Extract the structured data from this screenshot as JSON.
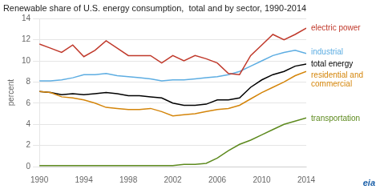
{
  "chart_data": {
    "type": "line",
    "title": "Renewable share of U.S. energy consumption,  total and by sector, 1990-2014",
    "ylabel": "percent",
    "x": [
      1990,
      1991,
      1992,
      1993,
      1994,
      1995,
      1996,
      1997,
      1998,
      1999,
      2000,
      2001,
      2002,
      2003,
      2004,
      2005,
      2006,
      2007,
      2008,
      2009,
      2010,
      2011,
      2012,
      2013,
      2014
    ],
    "series": [
      {
        "name": "electric power",
        "color": "#c0392b",
        "values": [
          11.6,
          11.2,
          10.8,
          11.5,
          10.4,
          11.0,
          11.9,
          11.2,
          10.5,
          10.5,
          10.5,
          9.8,
          10.5,
          10.0,
          10.5,
          10.2,
          9.8,
          8.8,
          8.7,
          10.5,
          11.5,
          12.5,
          12.0,
          12.5,
          13.1
        ]
      },
      {
        "name": "industrial",
        "color": "#5dade2",
        "values": [
          8.1,
          8.1,
          8.2,
          8.4,
          8.7,
          8.7,
          8.8,
          8.6,
          8.5,
          8.4,
          8.3,
          8.1,
          8.2,
          8.2,
          8.3,
          8.4,
          8.5,
          8.7,
          9.0,
          9.5,
          10.0,
          10.5,
          10.8,
          11.0,
          10.7
        ]
      },
      {
        "name": "residential and\ncommercial",
        "color": "#d4850a",
        "values": [
          7.1,
          7.0,
          6.6,
          6.5,
          6.3,
          6.0,
          5.6,
          5.5,
          5.4,
          5.4,
          5.5,
          5.2,
          4.8,
          4.9,
          5.0,
          5.2,
          5.4,
          5.5,
          5.8,
          6.4,
          7.0,
          7.5,
          8.0,
          8.6,
          9.0
        ]
      },
      {
        "name": "total energy",
        "color": "#000000",
        "values": [
          7.1,
          7.0,
          6.8,
          6.9,
          6.8,
          6.9,
          7.0,
          6.9,
          6.7,
          6.7,
          6.6,
          6.5,
          6.0,
          5.8,
          5.8,
          5.9,
          6.3,
          6.3,
          6.5,
          7.5,
          8.2,
          8.7,
          9.0,
          9.5,
          9.7
        ]
      },
      {
        "name": "transportation",
        "color": "#5d8a1e",
        "values": [
          0.1,
          0.1,
          0.1,
          0.1,
          0.1,
          0.1,
          0.1,
          0.1,
          0.1,
          0.1,
          0.1,
          0.1,
          0.1,
          0.2,
          0.2,
          0.3,
          0.8,
          1.5,
          2.1,
          2.5,
          3.0,
          3.5,
          4.0,
          4.3,
          4.6
        ]
      }
    ],
    "xlim": [
      1990,
      2014
    ],
    "ylim": [
      0,
      14
    ],
    "xticks": [
      1990,
      1994,
      1998,
      2002,
      2006,
      2010,
      2014
    ],
    "yticks": [
      0,
      2,
      4,
      6,
      8,
      10,
      12,
      14
    ],
    "grid": true,
    "annotations": [
      {
        "text": "electric power",
        "y": 13.1,
        "color": "#c0392b"
      },
      {
        "text": "industrial",
        "y": 10.8,
        "color": "#5dade2"
      },
      {
        "text": "total energy",
        "y": 9.7,
        "color": "#000000"
      },
      {
        "text": "residential and\ncommercial",
        "y": 8.2,
        "color": "#d4850a"
      },
      {
        "text": "transportation",
        "y": 4.5,
        "color": "#5d8a1e"
      },
      {
        "text": "eia",
        "color": "#1a5fa8"
      }
    ]
  }
}
